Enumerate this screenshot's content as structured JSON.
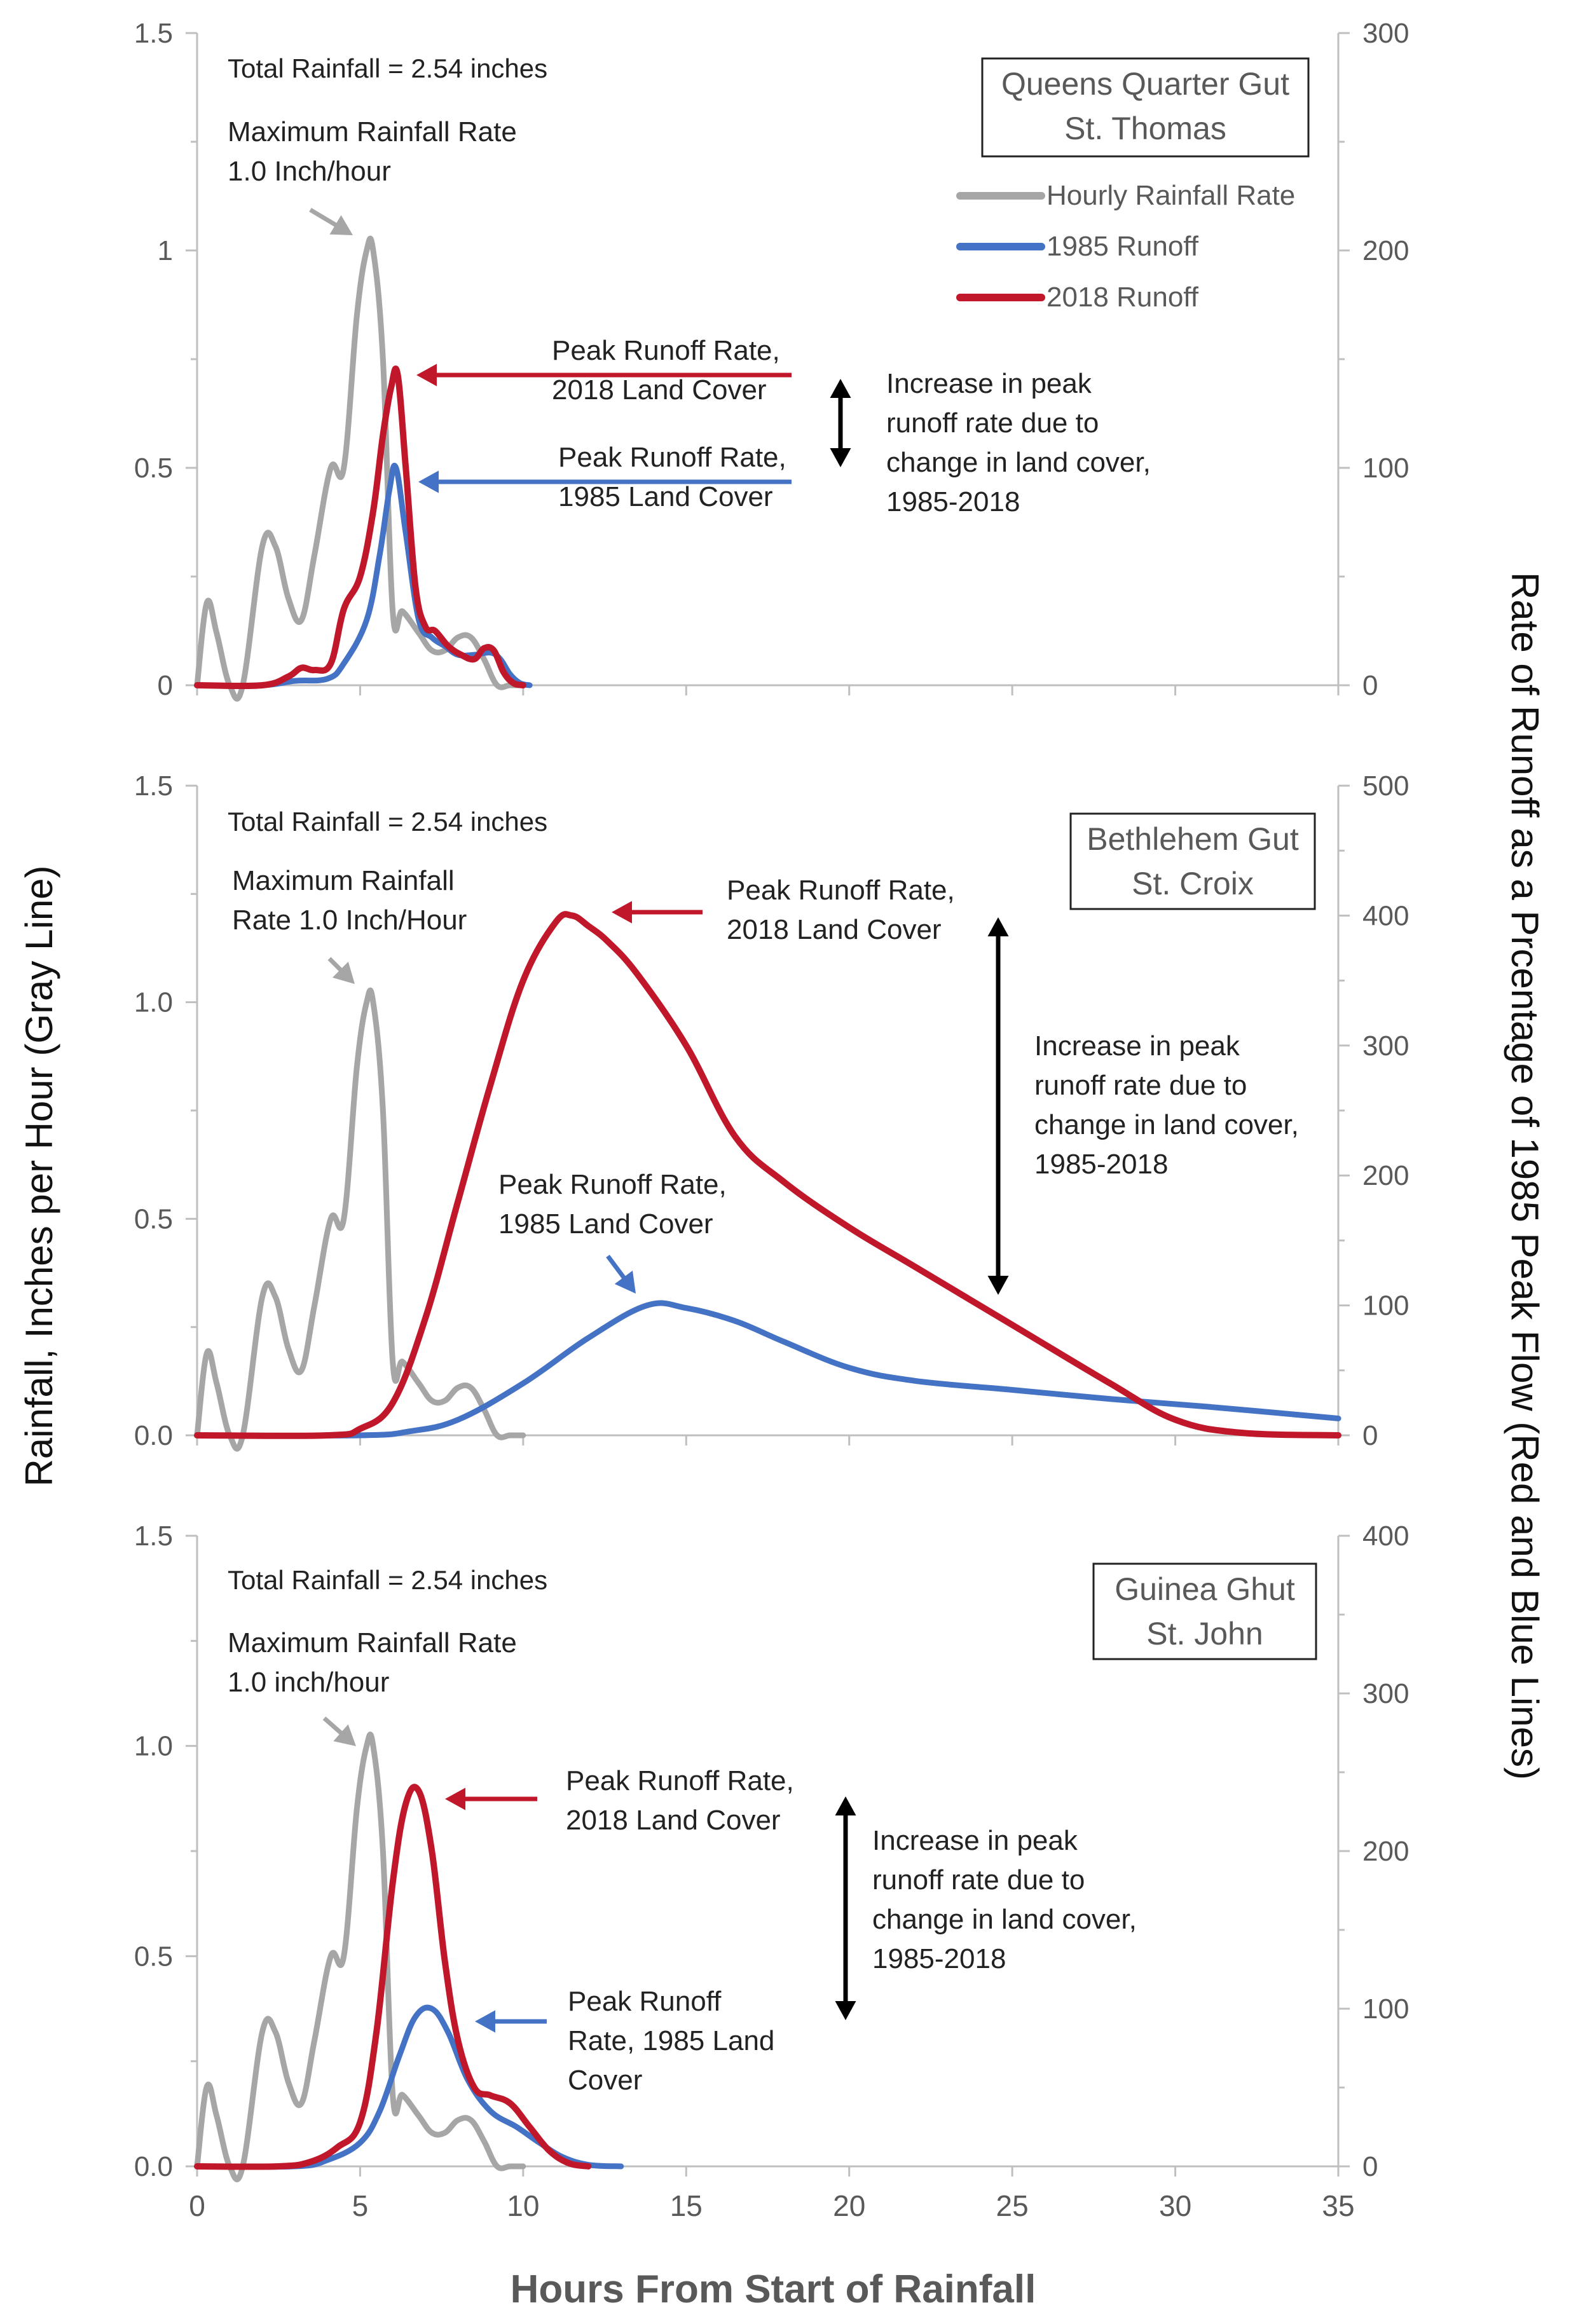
{
  "figure": {
    "left_axis_label": "Rainfall, Inches per Hour (Gray Line)",
    "right_axis_label": "Rate of Runoff as a Prcentage of 1985 Peak Flow (Red and Blue Lines)",
    "x_axis_label": "Hours From Start of Rainfall"
  },
  "colors": {
    "rainfall": "#A6A6A6",
    "runoff_1985": "#4472C4",
    "runoff_2018": "#C0182A",
    "axis": "#BFBFBF",
    "text": "#222222",
    "tick_text": "#595959"
  },
  "chart_data": [
    {
      "type": "line",
      "title": "Queens Quarter Gut St. Thomas",
      "box_lines": [
        "Queens Quarter Gut",
        "St. Thomas"
      ],
      "xlim": [
        0,
        35
      ],
      "ylim_left": [
        0,
        1.5
      ],
      "ylim_right": [
        0,
        300
      ],
      "left_ticks": [
        "0",
        "0.5",
        "1",
        "1.5"
      ],
      "right_ticks": [
        "0",
        "100",
        "200",
        "300"
      ],
      "legend": {
        "placement": "top-right",
        "entries": [
          "Hourly Rainfall Rate",
          "1985 Runoff",
          "2018 Runoff"
        ]
      },
      "annotations": {
        "total": "Total Rainfall = 2.54 inches",
        "max_rate": [
          "Maximum Rainfall Rate",
          "1.0 Inch/hour"
        ],
        "peak_2018": [
          "Peak Runoff Rate,",
          "2018 Land Cover"
        ],
        "peak_1985": [
          "Peak Runoff Rate,",
          "1985 Land Cover"
        ],
        "increase": [
          "Increase in peak",
          "runoff rate due to",
          "change in land cover,",
          "1985-2018"
        ]
      },
      "series": [
        {
          "name": "Hourly Rainfall Rate",
          "axis": "left",
          "x": [
            0,
            0.3,
            0.6,
            1,
            1.4,
            2,
            2.4,
            2.8,
            3.2,
            3.6,
            4.1,
            4.5,
            4.9,
            5.2,
            5.4,
            5.7,
            6.0,
            6.3,
            6.8,
            7.2,
            7.6,
            8.0,
            8.4,
            8.8,
            9.2,
            9.6,
            10.0
          ],
          "y": [
            0,
            0.19,
            0.12,
            0,
            0,
            0.32,
            0.32,
            0.2,
            0.15,
            0.3,
            0.5,
            0.5,
            0.85,
            1.0,
            1.0,
            0.75,
            0.17,
            0.17,
            0.12,
            0.08,
            0.08,
            0.11,
            0.11,
            0.06,
            0,
            0,
            0
          ]
        },
        {
          "name": "1985 Runoff",
          "axis": "right",
          "x": [
            0,
            2,
            3,
            4,
            4.5,
            5.2,
            5.6,
            5.9,
            6.1,
            6.4,
            6.8,
            7.2,
            7.6,
            8,
            8.5,
            9,
            9.3,
            9.6,
            9.9,
            10.2
          ],
          "y": [
            0,
            0,
            2,
            3,
            10,
            30,
            60,
            90,
            100,
            70,
            30,
            22,
            18,
            14,
            14,
            15,
            12,
            5,
            1,
            0
          ]
        },
        {
          "name": "2018 Runoff",
          "axis": "right",
          "x": [
            0,
            2,
            2.8,
            3.2,
            3.6,
            4.1,
            4.5,
            5.0,
            5.4,
            5.7,
            5.95,
            6.15,
            6.4,
            6.7,
            7.0,
            7.3,
            7.7,
            8.1,
            8.5,
            8.8,
            9.1,
            9.4,
            9.7,
            10.0
          ],
          "y": [
            0,
            0,
            4,
            8,
            7,
            10,
            35,
            50,
            80,
            115,
            137,
            143,
            100,
            45,
            27,
            25,
            18,
            14,
            12,
            17,
            16,
            6,
            1,
            0
          ]
        }
      ]
    },
    {
      "type": "line",
      "title": "Bethlehem Gut St. Croix",
      "box_lines": [
        "Bethlehem Gut",
        "St. Croix"
      ],
      "xlim": [
        0,
        35
      ],
      "ylim_left": [
        0,
        1.5
      ],
      "ylim_right": [
        0,
        500
      ],
      "left_ticks": [
        "0.0",
        "0.5",
        "1.0",
        "1.5"
      ],
      "right_ticks": [
        "0",
        "100",
        "200",
        "300",
        "400",
        "500"
      ],
      "annotations": {
        "total": "Total Rainfall = 2.54 inches",
        "max_rate": [
          "Maximum Rainfall",
          "Rate 1.0 Inch/Hour"
        ],
        "peak_2018": [
          "Peak Runoff Rate,",
          "2018 Land Cover"
        ],
        "peak_1985": [
          "Peak Runoff Rate,",
          "1985 Land Cover"
        ],
        "increase": [
          "Increase in peak",
          "runoff rate due to",
          "change in land cover,",
          "1985-2018"
        ]
      },
      "series": [
        {
          "name": "Hourly Rainfall Rate",
          "axis": "left",
          "x": [
            0,
            0.3,
            0.6,
            1,
            1.4,
            2,
            2.4,
            2.8,
            3.2,
            3.6,
            4.1,
            4.5,
            4.9,
            5.2,
            5.4,
            5.7,
            6.0,
            6.3,
            6.8,
            7.2,
            7.6,
            8.0,
            8.4,
            8.8,
            9.2,
            9.6,
            10.0
          ],
          "y": [
            0,
            0.19,
            0.12,
            0,
            0,
            0.32,
            0.32,
            0.2,
            0.15,
            0.3,
            0.5,
            0.5,
            0.85,
            1.0,
            1.0,
            0.75,
            0.17,
            0.17,
            0.12,
            0.08,
            0.08,
            0.11,
            0.11,
            0.06,
            0,
            0,
            0
          ]
        },
        {
          "name": "1985 Runoff",
          "axis": "right",
          "x": [
            0,
            5,
            6.5,
            8,
            10,
            12,
            13.8,
            15,
            16.5,
            18,
            20,
            22,
            25,
            28,
            31,
            35
          ],
          "y": [
            0,
            0,
            3,
            12,
            40,
            75,
            100,
            98,
            88,
            72,
            52,
            42,
            35,
            28,
            22,
            13
          ]
        },
        {
          "name": "2018 Runoff",
          "axis": "right",
          "x": [
            0,
            4,
            5,
            6,
            7,
            8,
            9,
            10,
            11,
            11.5,
            12,
            12.6,
            13.5,
            15,
            16.5,
            18,
            20,
            22,
            25,
            28,
            30,
            32,
            35
          ],
          "y": [
            0,
            0,
            5,
            25,
            90,
            180,
            270,
            350,
            395,
            400,
            392,
            380,
            355,
            300,
            230,
            195,
            160,
            130,
            85,
            40,
            12,
            2,
            0
          ]
        }
      ]
    },
    {
      "type": "line",
      "title": "Guinea Ghut St. John",
      "box_lines": [
        "Guinea Ghut",
        "St. John"
      ],
      "xlim": [
        0,
        35
      ],
      "ylim_left": [
        0,
        1.5
      ],
      "ylim_right": [
        0,
        400
      ],
      "left_ticks": [
        "0.0",
        "0.5",
        "1.0",
        "1.5"
      ],
      "right_ticks": [
        "0",
        "100",
        "200",
        "300",
        "400"
      ],
      "x_ticks": [
        "0",
        "5",
        "10",
        "15",
        "20",
        "25",
        "30",
        "35"
      ],
      "annotations": {
        "total": "Total Rainfall = 2.54 inches",
        "max_rate": [
          "Maximum Rainfall Rate",
          "1.0 inch/hour"
        ],
        "peak_2018": [
          "Peak Runoff Rate,",
          "2018 Land Cover"
        ],
        "peak_1985": [
          "Peak Runoff",
          "Rate, 1985 Land",
          "Cover"
        ],
        "increase": [
          "Increase in peak",
          "runoff rate due to",
          "change in land cover,",
          "1985-2018"
        ]
      },
      "series": [
        {
          "name": "Hourly Rainfall Rate",
          "axis": "left",
          "x": [
            0,
            0.3,
            0.6,
            1,
            1.4,
            2,
            2.4,
            2.8,
            3.2,
            3.6,
            4.1,
            4.5,
            4.9,
            5.2,
            5.4,
            5.7,
            6.0,
            6.3,
            6.8,
            7.2,
            7.6,
            8.0,
            8.4,
            8.8,
            9.2,
            9.6,
            10.0
          ],
          "y": [
            0,
            0.19,
            0.12,
            0,
            0,
            0.32,
            0.32,
            0.2,
            0.15,
            0.3,
            0.5,
            0.5,
            0.85,
            1.0,
            1.0,
            0.75,
            0.17,
            0.17,
            0.12,
            0.08,
            0.08,
            0.11,
            0.11,
            0.06,
            0,
            0,
            0
          ]
        },
        {
          "name": "1985 Runoff",
          "axis": "right",
          "x": [
            0,
            3,
            4,
            5,
            5.6,
            6.2,
            6.7,
            7.2,
            7.7,
            8.3,
            9,
            9.8,
            10.5,
            11.2,
            12,
            13
          ],
          "y": [
            0,
            0,
            4,
            15,
            35,
            70,
            95,
            100,
            85,
            55,
            35,
            25,
            15,
            6,
            1,
            0
          ]
        },
        {
          "name": "2018 Runoff",
          "axis": "right",
          "x": [
            0,
            2.5,
            3.5,
            4.3,
            5,
            5.5,
            6,
            6.4,
            6.8,
            7.2,
            7.6,
            8,
            8.5,
            9,
            9.6,
            10.2,
            10.8,
            11.4,
            12
          ],
          "y": [
            0,
            0,
            3,
            12,
            28,
            85,
            180,
            230,
            238,
            200,
            130,
            80,
            50,
            45,
            40,
            25,
            10,
            2,
            0
          ]
        }
      ]
    }
  ]
}
